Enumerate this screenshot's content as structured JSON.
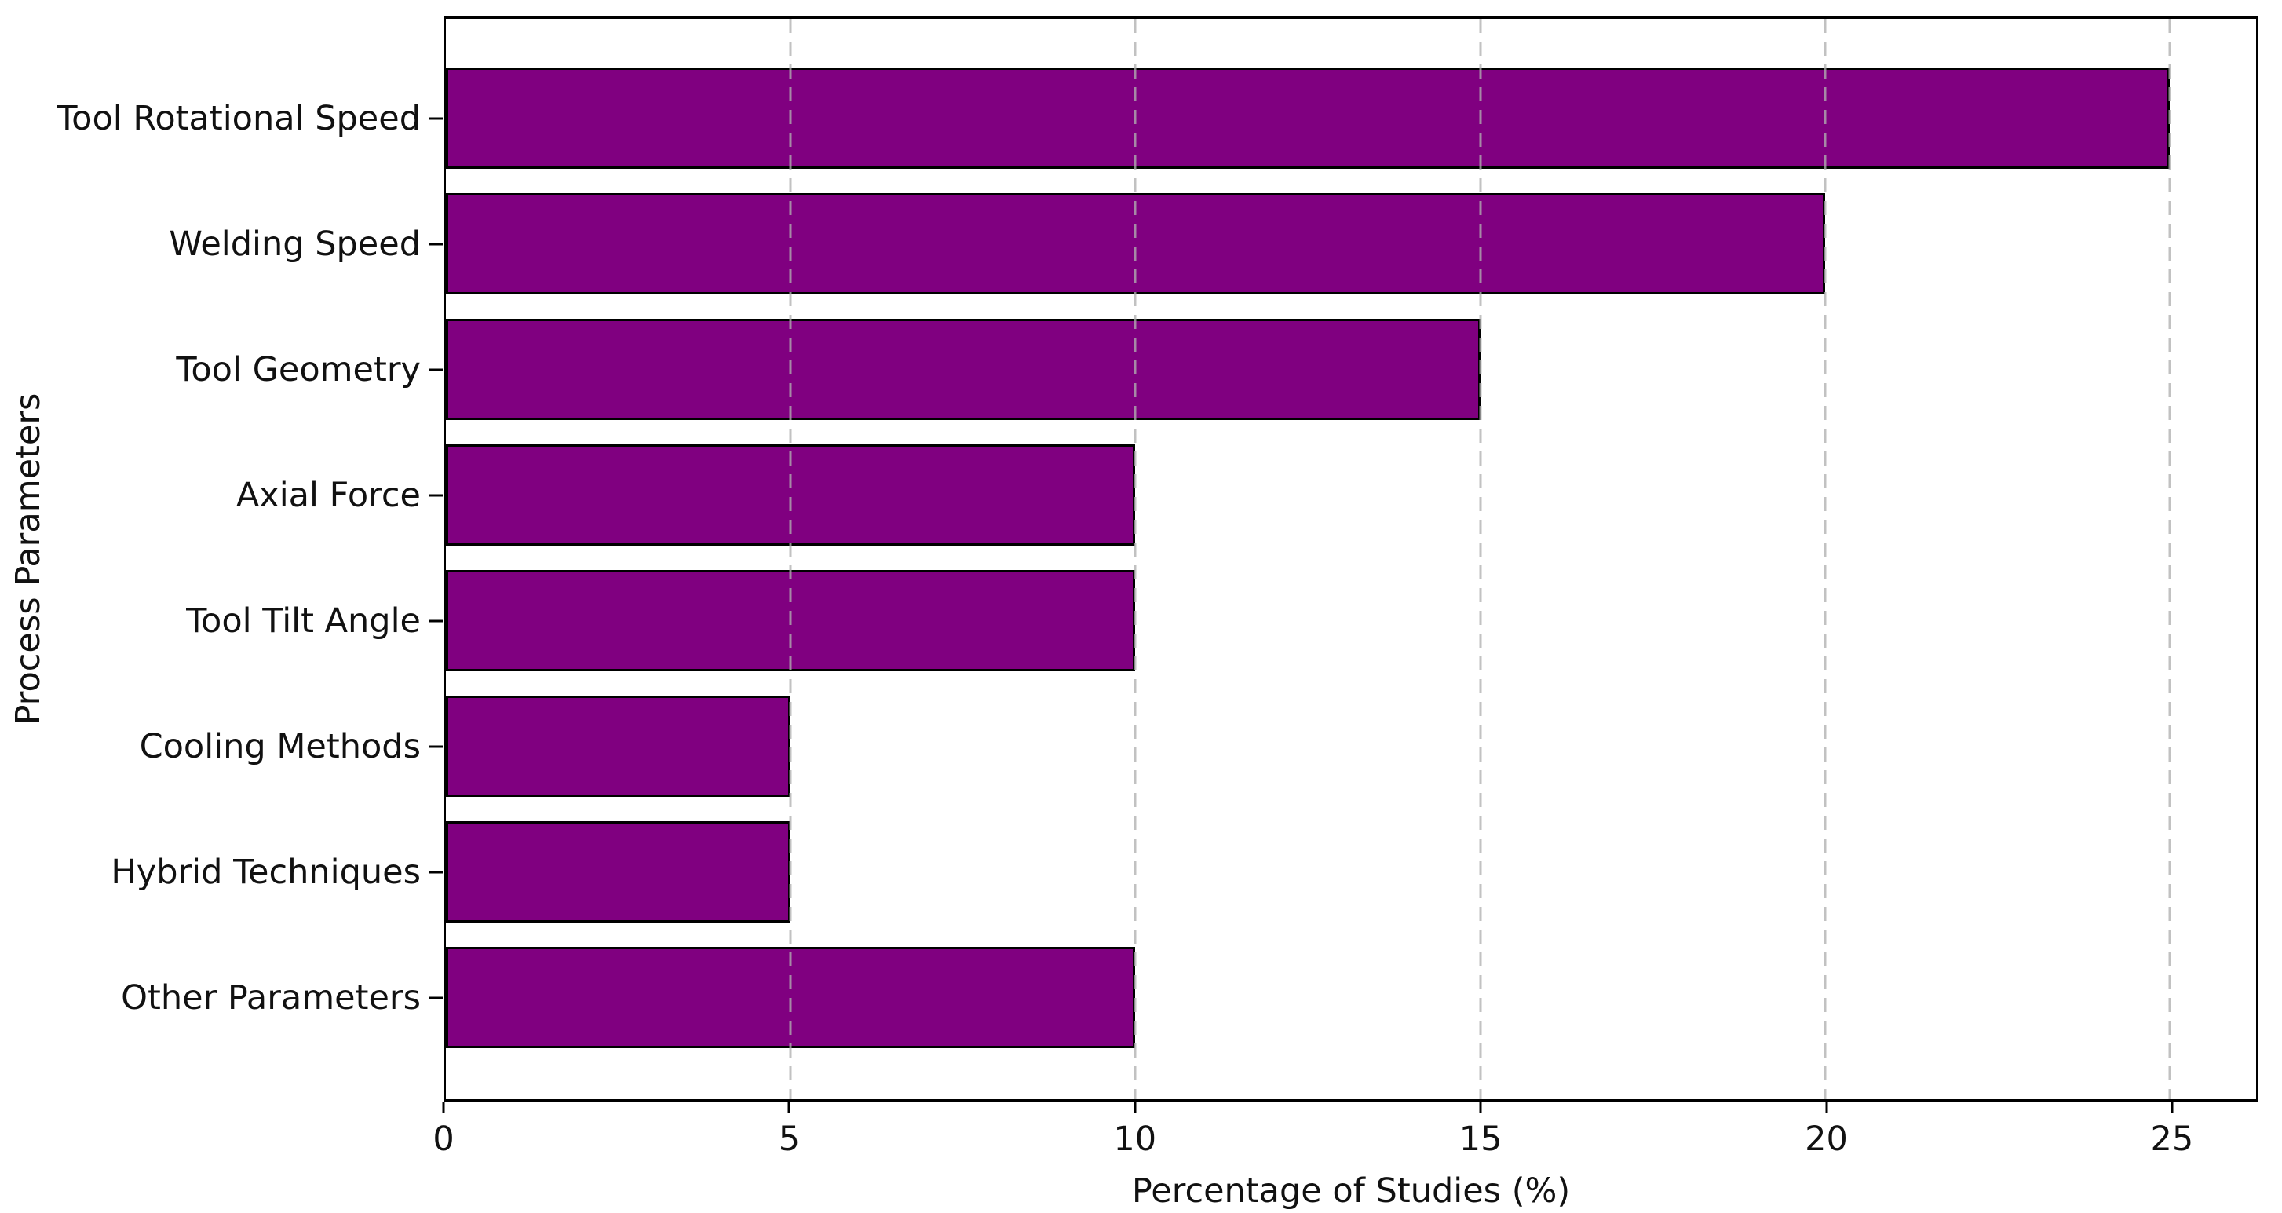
{
  "figure": {
    "background_color": "#ffffff",
    "text_color": "#111111"
  },
  "chart_data": {
    "type": "bar",
    "orientation": "horizontal",
    "title": "",
    "xlabel": "Percentage of Studies (%)",
    "ylabel": "Process Parameters",
    "categories": [
      "Tool Rotational Speed",
      "Welding Speed",
      "Tool Geometry",
      "Axial Force",
      "Tool Tilt Angle",
      "Cooling Methods",
      "Hybrid Techniques",
      "Other Parameters"
    ],
    "values": [
      25,
      20,
      15,
      10,
      10,
      5,
      5,
      10
    ],
    "xticks": [
      0,
      5,
      10,
      15,
      20,
      25
    ],
    "xtick_labels": [
      "0",
      "5",
      "10",
      "15",
      "20",
      "25"
    ],
    "xlim": [
      0,
      26.25
    ],
    "grid": "vertical-dashed-on-top-of-bars",
    "legend": "none",
    "bar_color": "#800080",
    "bar_edge_color": "#000000",
    "grid_color": "#b0b0b0",
    "grid_alpha": 0.78,
    "spine_color": "#000000"
  }
}
